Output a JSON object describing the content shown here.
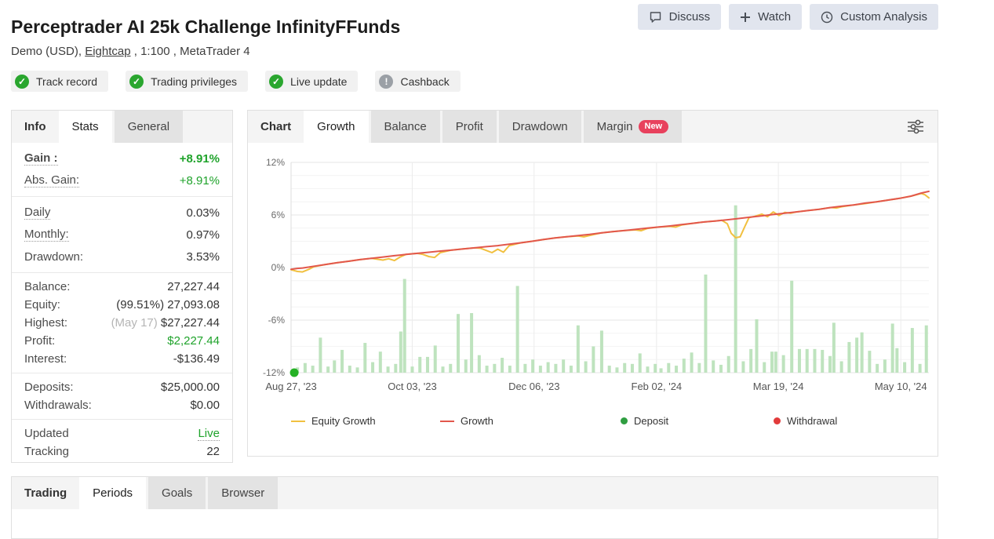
{
  "header": {
    "title": "Perceptrader AI 25k Challenge InfinityFFunds",
    "subtitle": {
      "prefix": "Demo (USD), ",
      "broker": "Eightcap",
      "suffix": " , 1:100 , MetaTrader 4"
    },
    "buttons": [
      {
        "label": "Discuss",
        "icon": "chat-icon"
      },
      {
        "label": "Watch",
        "icon": "plus-icon"
      },
      {
        "label": "Custom Analysis",
        "icon": "clock-icon"
      }
    ]
  },
  "badges": [
    {
      "label": "Track record",
      "status": "ok"
    },
    {
      "label": "Trading privileges",
      "status": "ok"
    },
    {
      "label": "Live update",
      "status": "ok"
    },
    {
      "label": "Cashback",
      "status": "warn"
    }
  ],
  "info_panel": {
    "tabs": [
      {
        "label": "Info",
        "style": "label"
      },
      {
        "label": "Stats",
        "style": "active"
      },
      {
        "label": "General",
        "style": "tab"
      }
    ],
    "groups": [
      [
        {
          "label": "Gain :",
          "value": "+8.91%",
          "label_class": "bold dotted",
          "value_class": "green bold"
        },
        {
          "label": "Abs. Gain:",
          "value": "+8.91%",
          "label_class": "dotted",
          "value_class": "green"
        }
      ],
      [
        {
          "label": "Daily",
          "value": "0.03%",
          "label_class": "dotted"
        },
        {
          "label": "Monthly:",
          "value": "0.97%",
          "label_class": "dotted"
        },
        {
          "label": "Drawdown:",
          "value": "3.53%"
        }
      ],
      [
        {
          "label": "Balance:",
          "value": "27,227.44"
        },
        {
          "label": "Equity:",
          "value": "(99.51%) 27,093.08"
        },
        {
          "label": "Highest:",
          "muted": "(May 17) ",
          "value": "$27,227.44"
        },
        {
          "label": "Profit:",
          "value": "$2,227.44",
          "value_class": "green"
        },
        {
          "label": "Interest:",
          "value": "-$136.49"
        }
      ],
      [
        {
          "label": "Deposits:",
          "value": "$25,000.00"
        },
        {
          "label": "Withdrawals:",
          "value": "$0.00"
        }
      ],
      [
        {
          "label": "Updated",
          "value": "Live",
          "value_class": "green dotted"
        },
        {
          "label": "Tracking",
          "value": "22"
        }
      ]
    ]
  },
  "chart_panel": {
    "tabs": [
      {
        "label": "Chart",
        "style": "label"
      },
      {
        "label": "Growth",
        "style": "active"
      },
      {
        "label": "Balance",
        "style": "tab"
      },
      {
        "label": "Profit",
        "style": "tab"
      },
      {
        "label": "Drawdown",
        "style": "tab"
      },
      {
        "label": "Margin",
        "style": "tab",
        "badge": "New"
      }
    ]
  },
  "chart_data": {
    "type": "line",
    "title": "Growth",
    "ylabel": "%",
    "ylim": [
      -12,
      12
    ],
    "y_ticks": [
      12,
      6,
      0,
      -6,
      -12
    ],
    "y_minor_step": 1.5,
    "grid": true,
    "x_ticks": [
      {
        "f": 0.0,
        "label": "Aug 27, '23"
      },
      {
        "f": 0.19,
        "label": "Oct 03, '23"
      },
      {
        "f": 0.381,
        "label": "Dec 06, '23"
      },
      {
        "f": 0.573,
        "label": "Feb 02, '24"
      },
      {
        "f": 0.764,
        "label": "Mar 19, '24"
      },
      {
        "f": 0.956,
        "label": "May 10, '24"
      }
    ],
    "series": [
      {
        "name": "Equity Growth",
        "color": "#f1c040",
        "points": [
          [
            0.0,
            -0.25
          ],
          [
            0.01,
            -0.45
          ],
          [
            0.018,
            -0.5
          ],
          [
            0.028,
            -0.2
          ],
          [
            0.036,
            0.1
          ],
          [
            0.054,
            0.35
          ],
          [
            0.072,
            0.55
          ],
          [
            0.09,
            0.72
          ],
          [
            0.108,
            0.9
          ],
          [
            0.126,
            1.05
          ],
          [
            0.135,
            0.95
          ],
          [
            0.144,
            0.85
          ],
          [
            0.153,
            1.0
          ],
          [
            0.162,
            0.8
          ],
          [
            0.171,
            1.2
          ],
          [
            0.18,
            1.5
          ],
          [
            0.198,
            1.62
          ],
          [
            0.207,
            1.5
          ],
          [
            0.216,
            1.25
          ],
          [
            0.225,
            1.15
          ],
          [
            0.234,
            1.7
          ],
          [
            0.252,
            2.0
          ],
          [
            0.27,
            2.12
          ],
          [
            0.288,
            2.25
          ],
          [
            0.297,
            2.2
          ],
          [
            0.306,
            1.95
          ],
          [
            0.315,
            1.7
          ],
          [
            0.324,
            2.1
          ],
          [
            0.333,
            1.75
          ],
          [
            0.342,
            2.5
          ],
          [
            0.36,
            2.82
          ],
          [
            0.378,
            3.0
          ],
          [
            0.396,
            3.2
          ],
          [
            0.414,
            3.38
          ],
          [
            0.432,
            3.52
          ],
          [
            0.45,
            3.6
          ],
          [
            0.459,
            3.5
          ],
          [
            0.468,
            3.65
          ],
          [
            0.486,
            3.95
          ],
          [
            0.504,
            4.1
          ],
          [
            0.522,
            4.22
          ],
          [
            0.54,
            4.3
          ],
          [
            0.549,
            4.2
          ],
          [
            0.558,
            4.45
          ],
          [
            0.576,
            4.62
          ],
          [
            0.594,
            4.7
          ],
          [
            0.603,
            4.62
          ],
          [
            0.612,
            4.85
          ],
          [
            0.63,
            5.05
          ],
          [
            0.648,
            5.2
          ],
          [
            0.666,
            5.32
          ],
          [
            0.675,
            5.4
          ],
          [
            0.684,
            5.0
          ],
          [
            0.69,
            3.9
          ],
          [
            0.697,
            3.4
          ],
          [
            0.704,
            3.5
          ],
          [
            0.711,
            4.6
          ],
          [
            0.718,
            5.7
          ],
          [
            0.727,
            5.85
          ],
          [
            0.738,
            6.1
          ],
          [
            0.747,
            5.8
          ],
          [
            0.756,
            6.35
          ],
          [
            0.765,
            5.95
          ],
          [
            0.774,
            6.3
          ],
          [
            0.783,
            6.2
          ],
          [
            0.792,
            6.35
          ],
          [
            0.81,
            6.5
          ],
          [
            0.828,
            6.65
          ],
          [
            0.846,
            6.85
          ],
          [
            0.855,
            6.8
          ],
          [
            0.864,
            6.95
          ],
          [
            0.882,
            7.15
          ],
          [
            0.9,
            7.3
          ],
          [
            0.918,
            7.5
          ],
          [
            0.936,
            7.7
          ],
          [
            0.954,
            7.9
          ],
          [
            0.972,
            8.15
          ],
          [
            0.988,
            8.45
          ],
          [
            0.994,
            8.3
          ],
          [
            1.0,
            7.95
          ]
        ]
      },
      {
        "name": "Growth",
        "color": "#e2574c",
        "points": [
          [
            0.0,
            -0.2
          ],
          [
            0.01,
            -0.1
          ],
          [
            0.018,
            -0.05
          ],
          [
            0.028,
            0.05
          ],
          [
            0.036,
            0.15
          ],
          [
            0.054,
            0.35
          ],
          [
            0.072,
            0.55
          ],
          [
            0.09,
            0.72
          ],
          [
            0.108,
            0.9
          ],
          [
            0.126,
            1.05
          ],
          [
            0.144,
            1.2
          ],
          [
            0.162,
            1.35
          ],
          [
            0.18,
            1.5
          ],
          [
            0.198,
            1.62
          ],
          [
            0.216,
            1.75
          ],
          [
            0.234,
            1.88
          ],
          [
            0.252,
            2.0
          ],
          [
            0.27,
            2.12
          ],
          [
            0.288,
            2.25
          ],
          [
            0.306,
            2.38
          ],
          [
            0.324,
            2.5
          ],
          [
            0.342,
            2.66
          ],
          [
            0.36,
            2.82
          ],
          [
            0.378,
            3.0
          ],
          [
            0.396,
            3.2
          ],
          [
            0.414,
            3.38
          ],
          [
            0.432,
            3.52
          ],
          [
            0.45,
            3.65
          ],
          [
            0.468,
            3.78
          ],
          [
            0.486,
            3.95
          ],
          [
            0.504,
            4.1
          ],
          [
            0.522,
            4.22
          ],
          [
            0.54,
            4.35
          ],
          [
            0.558,
            4.5
          ],
          [
            0.576,
            4.62
          ],
          [
            0.594,
            4.75
          ],
          [
            0.612,
            4.9
          ],
          [
            0.63,
            5.05
          ],
          [
            0.648,
            5.2
          ],
          [
            0.666,
            5.32
          ],
          [
            0.684,
            5.45
          ],
          [
            0.702,
            5.6
          ],
          [
            0.72,
            5.75
          ],
          [
            0.738,
            5.9
          ],
          [
            0.756,
            6.05
          ],
          [
            0.774,
            6.2
          ],
          [
            0.792,
            6.35
          ],
          [
            0.81,
            6.5
          ],
          [
            0.828,
            6.65
          ],
          [
            0.846,
            6.85
          ],
          [
            0.864,
            7.0
          ],
          [
            0.882,
            7.15
          ],
          [
            0.9,
            7.35
          ],
          [
            0.918,
            7.5
          ],
          [
            0.936,
            7.7
          ],
          [
            0.954,
            7.9
          ],
          [
            0.972,
            8.15
          ],
          [
            0.988,
            8.5
          ],
          [
            1.0,
            8.7
          ]
        ]
      }
    ],
    "bars": {
      "name": "trade-activity",
      "color": "#bee3be",
      "baseline": -12,
      "points": [
        [
          0.01,
          -11.4
        ],
        [
          0.022,
          -10.9
        ],
        [
          0.034,
          -11.2
        ],
        [
          0.046,
          -8.0
        ],
        [
          0.058,
          -11.3
        ],
        [
          0.068,
          -10.6
        ],
        [
          0.08,
          -9.4
        ],
        [
          0.092,
          -11.2
        ],
        [
          0.104,
          -11.4
        ],
        [
          0.116,
          -8.6
        ],
        [
          0.128,
          -10.8
        ],
        [
          0.14,
          -9.6
        ],
        [
          0.152,
          -11.3
        ],
        [
          0.164,
          -11.0
        ],
        [
          0.172,
          -7.3
        ],
        [
          0.178,
          -1.3
        ],
        [
          0.19,
          -11.3
        ],
        [
          0.202,
          -10.2
        ],
        [
          0.214,
          -10.2
        ],
        [
          0.226,
          -8.9
        ],
        [
          0.238,
          -11.3
        ],
        [
          0.25,
          -11.0
        ],
        [
          0.262,
          -5.3
        ],
        [
          0.274,
          -10.5
        ],
        [
          0.283,
          -5.2
        ],
        [
          0.295,
          -10.0
        ],
        [
          0.307,
          -11.2
        ],
        [
          0.319,
          -11.0
        ],
        [
          0.331,
          -10.3
        ],
        [
          0.343,
          -11.2
        ],
        [
          0.355,
          -2.1
        ],
        [
          0.367,
          -11.0
        ],
        [
          0.379,
          -10.5
        ],
        [
          0.391,
          -11.2
        ],
        [
          0.403,
          -10.8
        ],
        [
          0.415,
          -11.0
        ],
        [
          0.427,
          -10.5
        ],
        [
          0.439,
          -11.2
        ],
        [
          0.45,
          -6.6
        ],
        [
          0.462,
          -10.7
        ],
        [
          0.474,
          -9.0
        ],
        [
          0.487,
          -7.2
        ],
        [
          0.499,
          -11.2
        ],
        [
          0.511,
          -11.4
        ],
        [
          0.523,
          -10.9
        ],
        [
          0.535,
          -11.0
        ],
        [
          0.547,
          -9.8
        ],
        [
          0.559,
          -11.3
        ],
        [
          0.571,
          -11.0
        ],
        [
          0.58,
          -11.5
        ],
        [
          0.592,
          -10.9
        ],
        [
          0.604,
          -11.2
        ],
        [
          0.616,
          -10.4
        ],
        [
          0.628,
          -9.7
        ],
        [
          0.64,
          -10.9
        ],
        [
          0.65,
          -0.8
        ],
        [
          0.662,
          -10.6
        ],
        [
          0.674,
          -11.1
        ],
        [
          0.686,
          -10.1
        ],
        [
          0.697,
          7.1
        ],
        [
          0.709,
          -10.7
        ],
        [
          0.721,
          -9.3
        ],
        [
          0.73,
          -5.9
        ],
        [
          0.742,
          -10.8
        ],
        [
          0.754,
          -9.6
        ],
        [
          0.76,
          -9.6
        ],
        [
          0.772,
          -10.0
        ],
        [
          0.785,
          -1.5
        ],
        [
          0.797,
          -9.3
        ],
        [
          0.809,
          -9.3
        ],
        [
          0.821,
          -9.3
        ],
        [
          0.833,
          -9.4
        ],
        [
          0.845,
          -10.1
        ],
        [
          0.851,
          -6.3
        ],
        [
          0.863,
          -10.7
        ],
        [
          0.875,
          -8.5
        ],
        [
          0.887,
          -8.0
        ],
        [
          0.895,
          -7.4
        ],
        [
          0.907,
          -9.5
        ],
        [
          0.919,
          -11.0
        ],
        [
          0.931,
          -10.5
        ],
        [
          0.943,
          -6.4
        ],
        [
          0.95,
          -9.2
        ],
        [
          0.962,
          -10.8
        ],
        [
          0.974,
          -6.9
        ],
        [
          0.986,
          -11.0
        ],
        [
          0.996,
          -6.6
        ]
      ]
    },
    "markers": [
      {
        "type": "deposit",
        "color": "#25b125",
        "f": 0.005,
        "y": -12
      }
    ],
    "legend": [
      {
        "label": "Equity Growth",
        "swatch": "line",
        "color": "#f1c040"
      },
      {
        "label": "Growth",
        "swatch": "line",
        "color": "#e2574c"
      },
      {
        "label": "Deposit",
        "swatch": "dot",
        "color": "#2f9e41"
      },
      {
        "label": "Withdrawal",
        "swatch": "dot",
        "color": "#e23b3b"
      }
    ]
  },
  "bottom_panel": {
    "tabs": [
      {
        "label": "Trading",
        "style": "label"
      },
      {
        "label": "Periods",
        "style": "active"
      },
      {
        "label": "Goals",
        "style": "tab"
      },
      {
        "label": "Browser",
        "style": "tab"
      }
    ]
  },
  "colors": {
    "accent_green": "#1fa32b",
    "badge_green": "#2aa62f",
    "badge_gray": "#9ba0a6",
    "new_badge_red": "#e8415d",
    "growth_line": "#e2574c",
    "equity_line": "#f1c040",
    "activity_bars": "#bee3be",
    "deposit_dot": "#25b125"
  }
}
